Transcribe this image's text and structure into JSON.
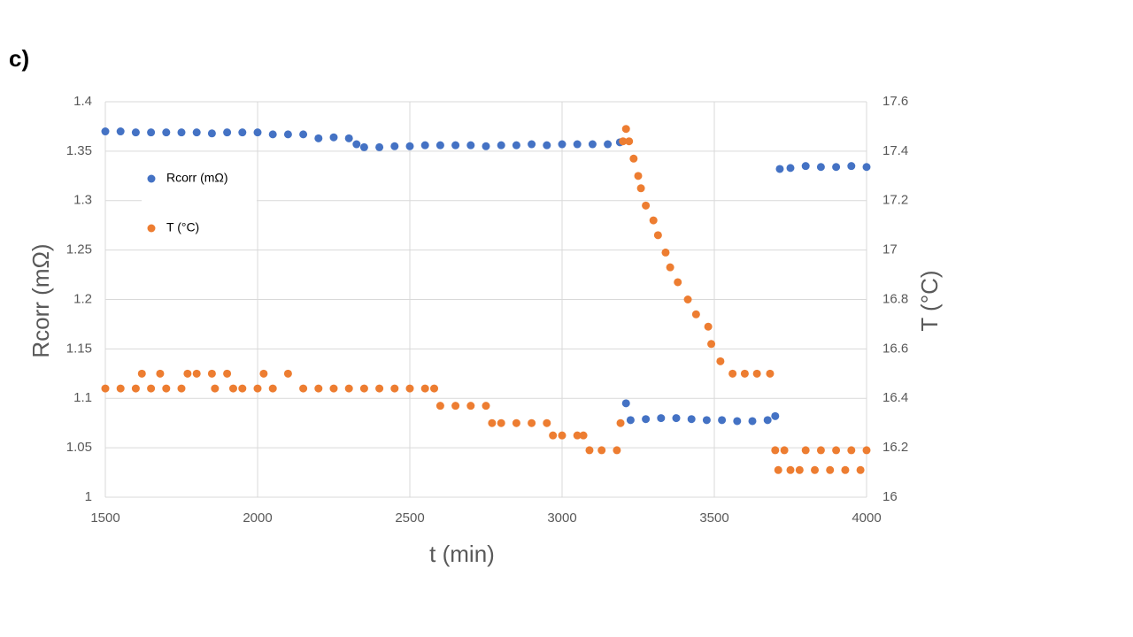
{
  "chart_data": {
    "type": "scatter",
    "panel_label": "c)",
    "x_label": "t (min)",
    "y_label": "Rcorr (mΩ)",
    "y2_label": "T (°C)",
    "xlim": [
      1500,
      4000
    ],
    "xticks": [
      1500,
      2000,
      2500,
      3000,
      3500,
      4000
    ],
    "ylim": [
      1,
      1.4
    ],
    "yticks": [
      1,
      1.05,
      1.1,
      1.15,
      1.2,
      1.25,
      1.3,
      1.35,
      1.4
    ],
    "y2lim": [
      16,
      17.6
    ],
    "y2ticks": [
      16,
      16.2,
      16.4,
      16.6,
      16.8,
      17,
      17.2,
      17.4,
      17.6
    ],
    "grid": true,
    "legend": "upper left",
    "series": [
      {
        "name": "Rcorr (mΩ)",
        "color": "#4472c4",
        "x": [
          1500,
          1550,
          1600,
          1650,
          1700,
          1750,
          1800,
          1850,
          1900,
          1950,
          2000,
          2050,
          2100,
          2150,
          2200,
          2250,
          2300,
          2325,
          2350,
          2400,
          2450,
          2500,
          2550,
          2600,
          2650,
          2700,
          2750,
          2800,
          2850,
          2900,
          2950,
          3000,
          3050,
          3100,
          3150,
          3190,
          3210,
          3225,
          3275,
          3325,
          3375,
          3425,
          3475,
          3525,
          3575,
          3625,
          3675,
          3700,
          3715,
          3750,
          3800,
          3850,
          3900,
          3950,
          4000
        ],
        "values": [
          1.37,
          1.37,
          1.369,
          1.369,
          1.369,
          1.369,
          1.369,
          1.368,
          1.369,
          1.369,
          1.369,
          1.367,
          1.367,
          1.367,
          1.363,
          1.364,
          1.363,
          1.357,
          1.354,
          1.354,
          1.355,
          1.355,
          1.356,
          1.356,
          1.356,
          1.356,
          1.355,
          1.356,
          1.356,
          1.357,
          1.356,
          1.357,
          1.357,
          1.357,
          1.357,
          1.359,
          1.095,
          1.078,
          1.079,
          1.08,
          1.08,
          1.079,
          1.078,
          1.078,
          1.077,
          1.077,
          1.078,
          1.082,
          1.332,
          1.333,
          1.335,
          1.334,
          1.334,
          1.335,
          1.334
        ]
      },
      {
        "name": "T (°C)",
        "color": "#ed7d31",
        "axis": "y2",
        "x": [
          1500,
          1550,
          1600,
          1620,
          1650,
          1680,
          1700,
          1750,
          1770,
          1800,
          1850,
          1860,
          1900,
          1920,
          1950,
          2000,
          2020,
          2050,
          2100,
          2150,
          2200,
          2250,
          2300,
          2350,
          2400,
          2450,
          2500,
          2550,
          2580,
          2600,
          2650,
          2700,
          2750,
          2770,
          2800,
          2850,
          2900,
          2950,
          2970,
          3000,
          3050,
          3070,
          3090,
          3130,
          3180,
          3192,
          3200,
          3210,
          3220,
          3235,
          3250,
          3259,
          3275,
          3300,
          3315,
          3340,
          3355,
          3380,
          3413,
          3440,
          3480,
          3490,
          3520,
          3560,
          3600,
          3640,
          3683,
          3700,
          3710,
          3730,
          3750,
          3780,
          3800,
          3830,
          3850,
          3880,
          3900,
          3930,
          3950,
          3980,
          4000
        ],
        "values": [
          16.44,
          16.44,
          16.44,
          16.5,
          16.44,
          16.5,
          16.44,
          16.44,
          16.5,
          16.5,
          16.5,
          16.44,
          16.5,
          16.44,
          16.44,
          16.44,
          16.5,
          16.44,
          16.5,
          16.44,
          16.44,
          16.44,
          16.44,
          16.44,
          16.44,
          16.44,
          16.44,
          16.44,
          16.44,
          16.37,
          16.37,
          16.37,
          16.37,
          16.3,
          16.3,
          16.3,
          16.3,
          16.3,
          16.25,
          16.25,
          16.25,
          16.25,
          16.19,
          16.19,
          16.19,
          16.3,
          17.44,
          17.49,
          17.44,
          17.37,
          17.3,
          17.25,
          17.18,
          17.12,
          17.06,
          16.99,
          16.93,
          16.87,
          16.8,
          16.74,
          16.69,
          16.62,
          16.55,
          16.5,
          16.5,
          16.5,
          16.5,
          16.19,
          16.11,
          16.19,
          16.11,
          16.11,
          16.19,
          16.11,
          16.19,
          16.11,
          16.19,
          16.11,
          16.19,
          16.11,
          16.19
        ]
      }
    ]
  }
}
